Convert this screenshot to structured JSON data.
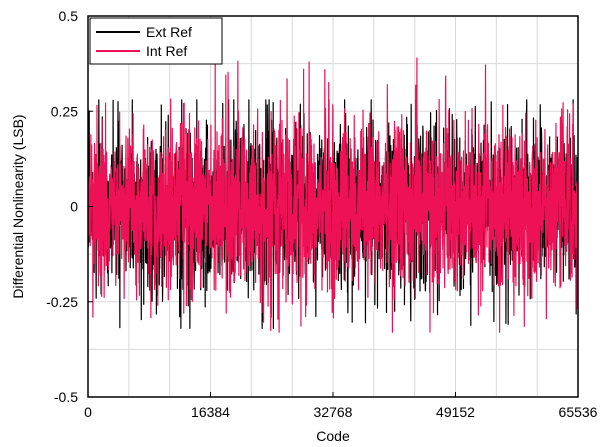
{
  "chart_data": {
    "type": "line",
    "xlabel": "Code",
    "ylabel": "Differential Nonlinearity (LSB)",
    "xlim": [
      0,
      65536
    ],
    "ylim": [
      -0.5,
      0.5
    ],
    "x_ticks": [
      0,
      16384,
      32768,
      49152,
      65536
    ],
    "y_ticks": [
      -0.5,
      -0.25,
      0,
      0.25,
      0.5
    ],
    "x_tick_labels": [
      "0",
      "16384",
      "32768",
      "49152",
      "65536"
    ],
    "y_tick_labels": [
      "-0.5",
      "-0.25",
      "0",
      "0.25",
      "0.5"
    ],
    "grid": true,
    "legend_position": "top-left",
    "series": [
      {
        "name": "Ext Ref",
        "color": "#000000",
        "typical_range": [
          -0.2,
          0.2
        ],
        "max": 0.28,
        "min": -0.32
      },
      {
        "name": "Int Ref",
        "color": "#ee1156",
        "typical_range": [
          -0.2,
          0.2
        ],
        "max": 0.4,
        "min": -0.33
      }
    ]
  }
}
